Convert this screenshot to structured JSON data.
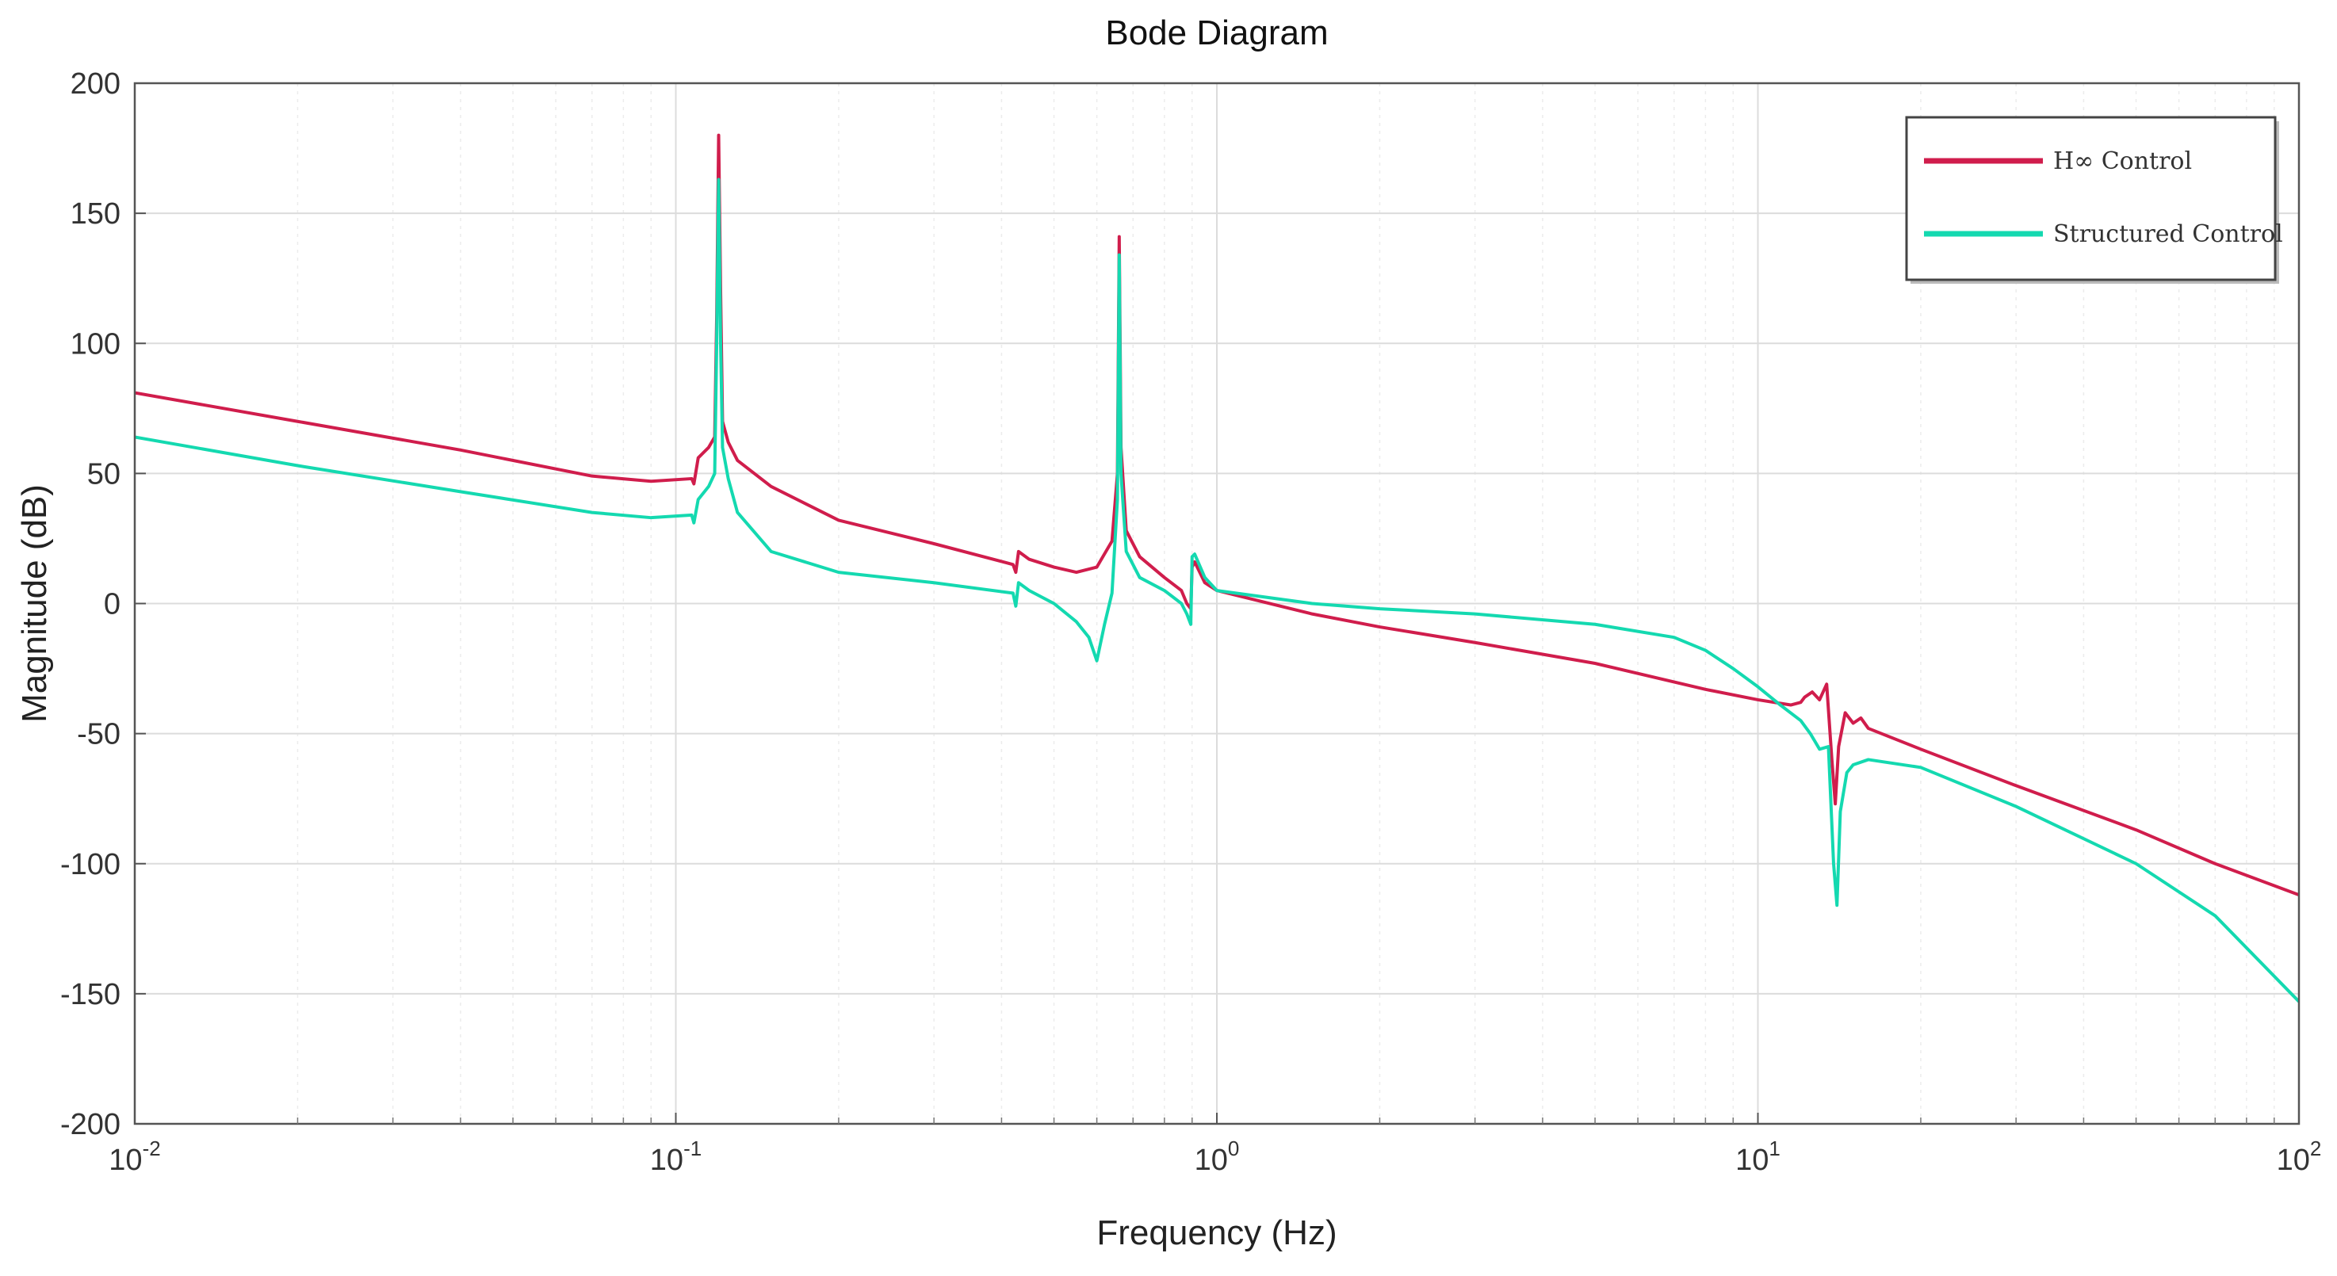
{
  "chart_data": {
    "type": "line",
    "title": "Bode Diagram",
    "xlabel": "Frequency  (Hz)",
    "ylabel": "Magnitude (dB)",
    "xscale": "log",
    "xlim": [
      0.01,
      100
    ],
    "ylim": [
      -200,
      200
    ],
    "grid": true,
    "legend_position": "top-right",
    "x_ticks": [
      {
        "value": 0.01,
        "base": "10",
        "exp": "-2"
      },
      {
        "value": 0.1,
        "base": "10",
        "exp": "-1"
      },
      {
        "value": 1,
        "base": "10",
        "exp": "0"
      },
      {
        "value": 10,
        "base": "10",
        "exp": "1"
      },
      {
        "value": 100,
        "base": "10",
        "exp": "2"
      }
    ],
    "y_ticks": [
      {
        "value": 200,
        "label": "200"
      },
      {
        "value": 150,
        "label": "150"
      },
      {
        "value": 100,
        "label": "100"
      },
      {
        "value": 50,
        "label": "50"
      },
      {
        "value": 0,
        "label": "0"
      },
      {
        "value": -50,
        "label": "-50"
      },
      {
        "value": -100,
        "label": "-100"
      },
      {
        "value": -150,
        "label": "-150"
      },
      {
        "value": -200,
        "label": "-200"
      }
    ],
    "series": [
      {
        "name": "H∞ Control",
        "color": "#d01d4c",
        "points": [
          [
            0.01,
            81
          ],
          [
            0.02,
            70
          ],
          [
            0.04,
            59
          ],
          [
            0.07,
            49
          ],
          [
            0.09,
            47
          ],
          [
            0.107,
            48
          ],
          [
            0.108,
            46
          ],
          [
            0.11,
            56
          ],
          [
            0.115,
            60
          ],
          [
            0.118,
            64
          ],
          [
            0.119,
            110
          ],
          [
            0.12,
            180
          ],
          [
            0.121,
            120
          ],
          [
            0.122,
            70
          ],
          [
            0.125,
            62
          ],
          [
            0.13,
            55
          ],
          [
            0.15,
            45
          ],
          [
            0.2,
            32
          ],
          [
            0.3,
            23
          ],
          [
            0.42,
            15
          ],
          [
            0.425,
            12
          ],
          [
            0.43,
            20
          ],
          [
            0.45,
            17
          ],
          [
            0.5,
            14
          ],
          [
            0.55,
            12
          ],
          [
            0.6,
            14
          ],
          [
            0.64,
            24
          ],
          [
            0.655,
            50
          ],
          [
            0.66,
            141
          ],
          [
            0.665,
            60
          ],
          [
            0.68,
            28
          ],
          [
            0.72,
            18
          ],
          [
            0.8,
            10
          ],
          [
            0.86,
            5
          ],
          [
            0.88,
            0
          ],
          [
            0.895,
            -2
          ],
          [
            0.9,
            14
          ],
          [
            0.91,
            16
          ],
          [
            0.95,
            8
          ],
          [
            1.0,
            5
          ],
          [
            1.5,
            -4
          ],
          [
            2,
            -9
          ],
          [
            3,
            -15
          ],
          [
            5,
            -23
          ],
          [
            8,
            -33
          ],
          [
            10,
            -37
          ],
          [
            11.5,
            -39
          ],
          [
            12,
            -38
          ],
          [
            12.2,
            -36
          ],
          [
            12.6,
            -34
          ],
          [
            13,
            -37
          ],
          [
            13.4,
            -31
          ],
          [
            13.7,
            -60
          ],
          [
            13.9,
            -77
          ],
          [
            14.1,
            -55
          ],
          [
            14.5,
            -42
          ],
          [
            15,
            -46
          ],
          [
            15.5,
            -44
          ],
          [
            16,
            -48
          ],
          [
            20,
            -56
          ],
          [
            30,
            -70
          ],
          [
            50,
            -87
          ],
          [
            70,
            -100
          ],
          [
            100,
            -112
          ]
        ]
      },
      {
        "name": "Structured Control",
        "color": "#14d9b0",
        "points": [
          [
            0.01,
            64
          ],
          [
            0.02,
            53
          ],
          [
            0.04,
            43
          ],
          [
            0.07,
            35
          ],
          [
            0.09,
            33
          ],
          [
            0.107,
            34
          ],
          [
            0.108,
            31
          ],
          [
            0.11,
            40
          ],
          [
            0.115,
            45
          ],
          [
            0.118,
            50
          ],
          [
            0.119,
            100
          ],
          [
            0.12,
            163
          ],
          [
            0.121,
            100
          ],
          [
            0.122,
            60
          ],
          [
            0.125,
            48
          ],
          [
            0.13,
            35
          ],
          [
            0.15,
            20
          ],
          [
            0.2,
            12
          ],
          [
            0.3,
            8
          ],
          [
            0.42,
            4
          ],
          [
            0.425,
            -1
          ],
          [
            0.43,
            8
          ],
          [
            0.45,
            5
          ],
          [
            0.5,
            0
          ],
          [
            0.55,
            -7
          ],
          [
            0.58,
            -13
          ],
          [
            0.6,
            -22
          ],
          [
            0.62,
            -8
          ],
          [
            0.64,
            4
          ],
          [
            0.655,
            40
          ],
          [
            0.66,
            134
          ],
          [
            0.665,
            50
          ],
          [
            0.68,
            20
          ],
          [
            0.72,
            10
          ],
          [
            0.8,
            5
          ],
          [
            0.86,
            0
          ],
          [
            0.88,
            -4
          ],
          [
            0.895,
            -8
          ],
          [
            0.9,
            18
          ],
          [
            0.91,
            19
          ],
          [
            0.95,
            10
          ],
          [
            1.0,
            5
          ],
          [
            1.5,
            0
          ],
          [
            2,
            -2
          ],
          [
            3,
            -4
          ],
          [
            5,
            -8
          ],
          [
            7,
            -13
          ],
          [
            8,
            -18
          ],
          [
            9,
            -25
          ],
          [
            10,
            -32
          ],
          [
            11,
            -39
          ],
          [
            12,
            -45
          ],
          [
            12.5,
            -50
          ],
          [
            13,
            -56
          ],
          [
            13.5,
            -55
          ],
          [
            13.8,
            -100
          ],
          [
            14,
            -116
          ],
          [
            14.2,
            -80
          ],
          [
            14.6,
            -65
          ],
          [
            15,
            -62
          ],
          [
            16,
            -60
          ],
          [
            20,
            -63
          ],
          [
            30,
            -78
          ],
          [
            50,
            -100
          ],
          [
            70,
            -120
          ],
          [
            100,
            -153
          ]
        ]
      }
    ]
  }
}
